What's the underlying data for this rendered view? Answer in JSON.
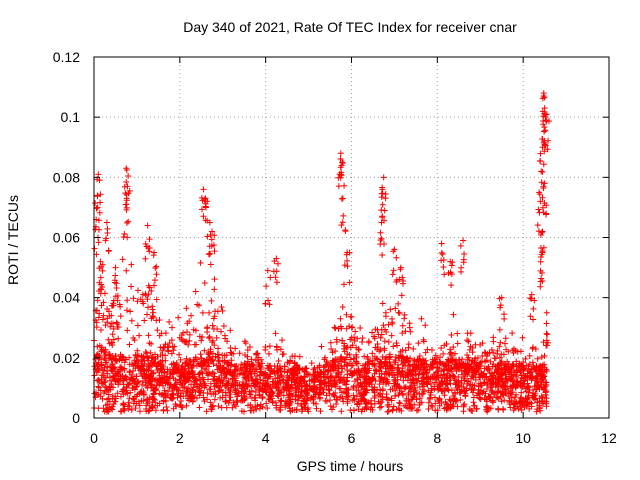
{
  "chart_data": {
    "type": "scatter",
    "title": "Day 340 of 2021, Rate Of TEC Index for receiver cnar",
    "xlabel": "GPS time / hours",
    "ylabel": "ROTI / TECUs",
    "xlim": [
      0,
      12
    ],
    "ylim": [
      0,
      0.12
    ],
    "xticks": [
      0,
      2,
      4,
      6,
      8,
      10,
      12
    ],
    "yticks": [
      0,
      0.02,
      0.04,
      0.06,
      0.08,
      0.1,
      0.12
    ],
    "xtick_labels": [
      "0",
      "2",
      "4",
      "6",
      "8",
      "10",
      "12"
    ],
    "ytick_labels": [
      "0",
      "0.02",
      "0.04",
      "0.06",
      "0.08",
      "0.1",
      "0.12"
    ],
    "grid": true,
    "marker": "+",
    "color": "#ff0000",
    "series": [
      {
        "name": "ROTI",
        "notable_points": [
          {
            "x": 0.05,
            "y": 0.066
          },
          {
            "x": 0.08,
            "y": 0.074
          },
          {
            "x": 0.1,
            "y": 0.081
          },
          {
            "x": 0.15,
            "y": 0.052
          },
          {
            "x": 0.3,
            "y": 0.065
          },
          {
            "x": 0.5,
            "y": 0.05
          },
          {
            "x": 0.75,
            "y": 0.083
          },
          {
            "x": 0.78,
            "y": 0.077
          },
          {
            "x": 0.75,
            "y": 0.071
          },
          {
            "x": 1.25,
            "y": 0.064
          },
          {
            "x": 1.4,
            "y": 0.055
          },
          {
            "x": 2.55,
            "y": 0.076
          },
          {
            "x": 2.6,
            "y": 0.073
          },
          {
            "x": 2.7,
            "y": 0.065
          },
          {
            "x": 2.75,
            "y": 0.062
          },
          {
            "x": 4.05,
            "y": 0.049
          },
          {
            "x": 4.25,
            "y": 0.053
          },
          {
            "x": 5.75,
            "y": 0.088
          },
          {
            "x": 5.78,
            "y": 0.085
          },
          {
            "x": 5.8,
            "y": 0.073
          },
          {
            "x": 5.9,
            "y": 0.055
          },
          {
            "x": 6.75,
            "y": 0.08
          },
          {
            "x": 6.72,
            "y": 0.076
          },
          {
            "x": 6.7,
            "y": 0.065
          },
          {
            "x": 7.0,
            "y": 0.056
          },
          {
            "x": 7.15,
            "y": 0.05
          },
          {
            "x": 8.1,
            "y": 0.058
          },
          {
            "x": 8.3,
            "y": 0.052
          },
          {
            "x": 8.6,
            "y": 0.059
          },
          {
            "x": 9.5,
            "y": 0.04
          },
          {
            "x": 10.48,
            "y": 0.108
          },
          {
            "x": 10.5,
            "y": 0.103
          },
          {
            "x": 10.52,
            "y": 0.1
          },
          {
            "x": 10.55,
            "y": 0.101
          },
          {
            "x": 10.45,
            "y": 0.09
          },
          {
            "x": 10.42,
            "y": 0.082
          },
          {
            "x": 10.5,
            "y": 0.078
          },
          {
            "x": 10.4,
            "y": 0.072
          },
          {
            "x": 10.45,
            "y": 0.062
          },
          {
            "x": 10.45,
            "y": 0.055
          },
          {
            "x": 10.55,
            "y": 0.035
          },
          {
            "x": 10.2,
            "y": 0.041
          }
        ],
        "activity_envelope": [
          {
            "x": 0.0,
            "base": 0.012,
            "hi": 0.045
          },
          {
            "x": 0.15,
            "base": 0.014,
            "hi": 0.06
          },
          {
            "x": 0.4,
            "base": 0.012,
            "hi": 0.05
          },
          {
            "x": 0.7,
            "base": 0.012,
            "hi": 0.058
          },
          {
            "x": 1.0,
            "base": 0.012,
            "hi": 0.05
          },
          {
            "x": 1.3,
            "base": 0.013,
            "hi": 0.058
          },
          {
            "x": 1.6,
            "base": 0.011,
            "hi": 0.035
          },
          {
            "x": 2.0,
            "base": 0.01,
            "hi": 0.04
          },
          {
            "x": 2.3,
            "base": 0.011,
            "hi": 0.045
          },
          {
            "x": 2.6,
            "base": 0.013,
            "hi": 0.06
          },
          {
            "x": 2.9,
            "base": 0.012,
            "hi": 0.045
          },
          {
            "x": 3.2,
            "base": 0.01,
            "hi": 0.03
          },
          {
            "x": 3.6,
            "base": 0.01,
            "hi": 0.025
          },
          {
            "x": 4.0,
            "base": 0.01,
            "hi": 0.03
          },
          {
            "x": 4.3,
            "base": 0.01,
            "hi": 0.03
          },
          {
            "x": 4.7,
            "base": 0.009,
            "hi": 0.022
          },
          {
            "x": 5.2,
            "base": 0.009,
            "hi": 0.02
          },
          {
            "x": 5.6,
            "base": 0.011,
            "hi": 0.04
          },
          {
            "x": 5.9,
            "base": 0.012,
            "hi": 0.05
          },
          {
            "x": 6.3,
            "base": 0.01,
            "hi": 0.03
          },
          {
            "x": 6.7,
            "base": 0.012,
            "hi": 0.045
          },
          {
            "x": 7.1,
            "base": 0.012,
            "hi": 0.05
          },
          {
            "x": 7.5,
            "base": 0.011,
            "hi": 0.035
          },
          {
            "x": 7.9,
            "base": 0.011,
            "hi": 0.03
          },
          {
            "x": 8.3,
            "base": 0.011,
            "hi": 0.035
          },
          {
            "x": 8.7,
            "base": 0.011,
            "hi": 0.033
          },
          {
            "x": 9.1,
            "base": 0.01,
            "hi": 0.03
          },
          {
            "x": 9.5,
            "base": 0.01,
            "hi": 0.03
          },
          {
            "x": 9.9,
            "base": 0.01,
            "hi": 0.028
          },
          {
            "x": 10.2,
            "base": 0.01,
            "hi": 0.03
          },
          {
            "x": 10.55,
            "base": 0.009,
            "hi": 0.025
          }
        ],
        "x_range": [
          0,
          10.55
        ],
        "y_floor": 0.002,
        "approx_point_count": 3200
      }
    ]
  }
}
